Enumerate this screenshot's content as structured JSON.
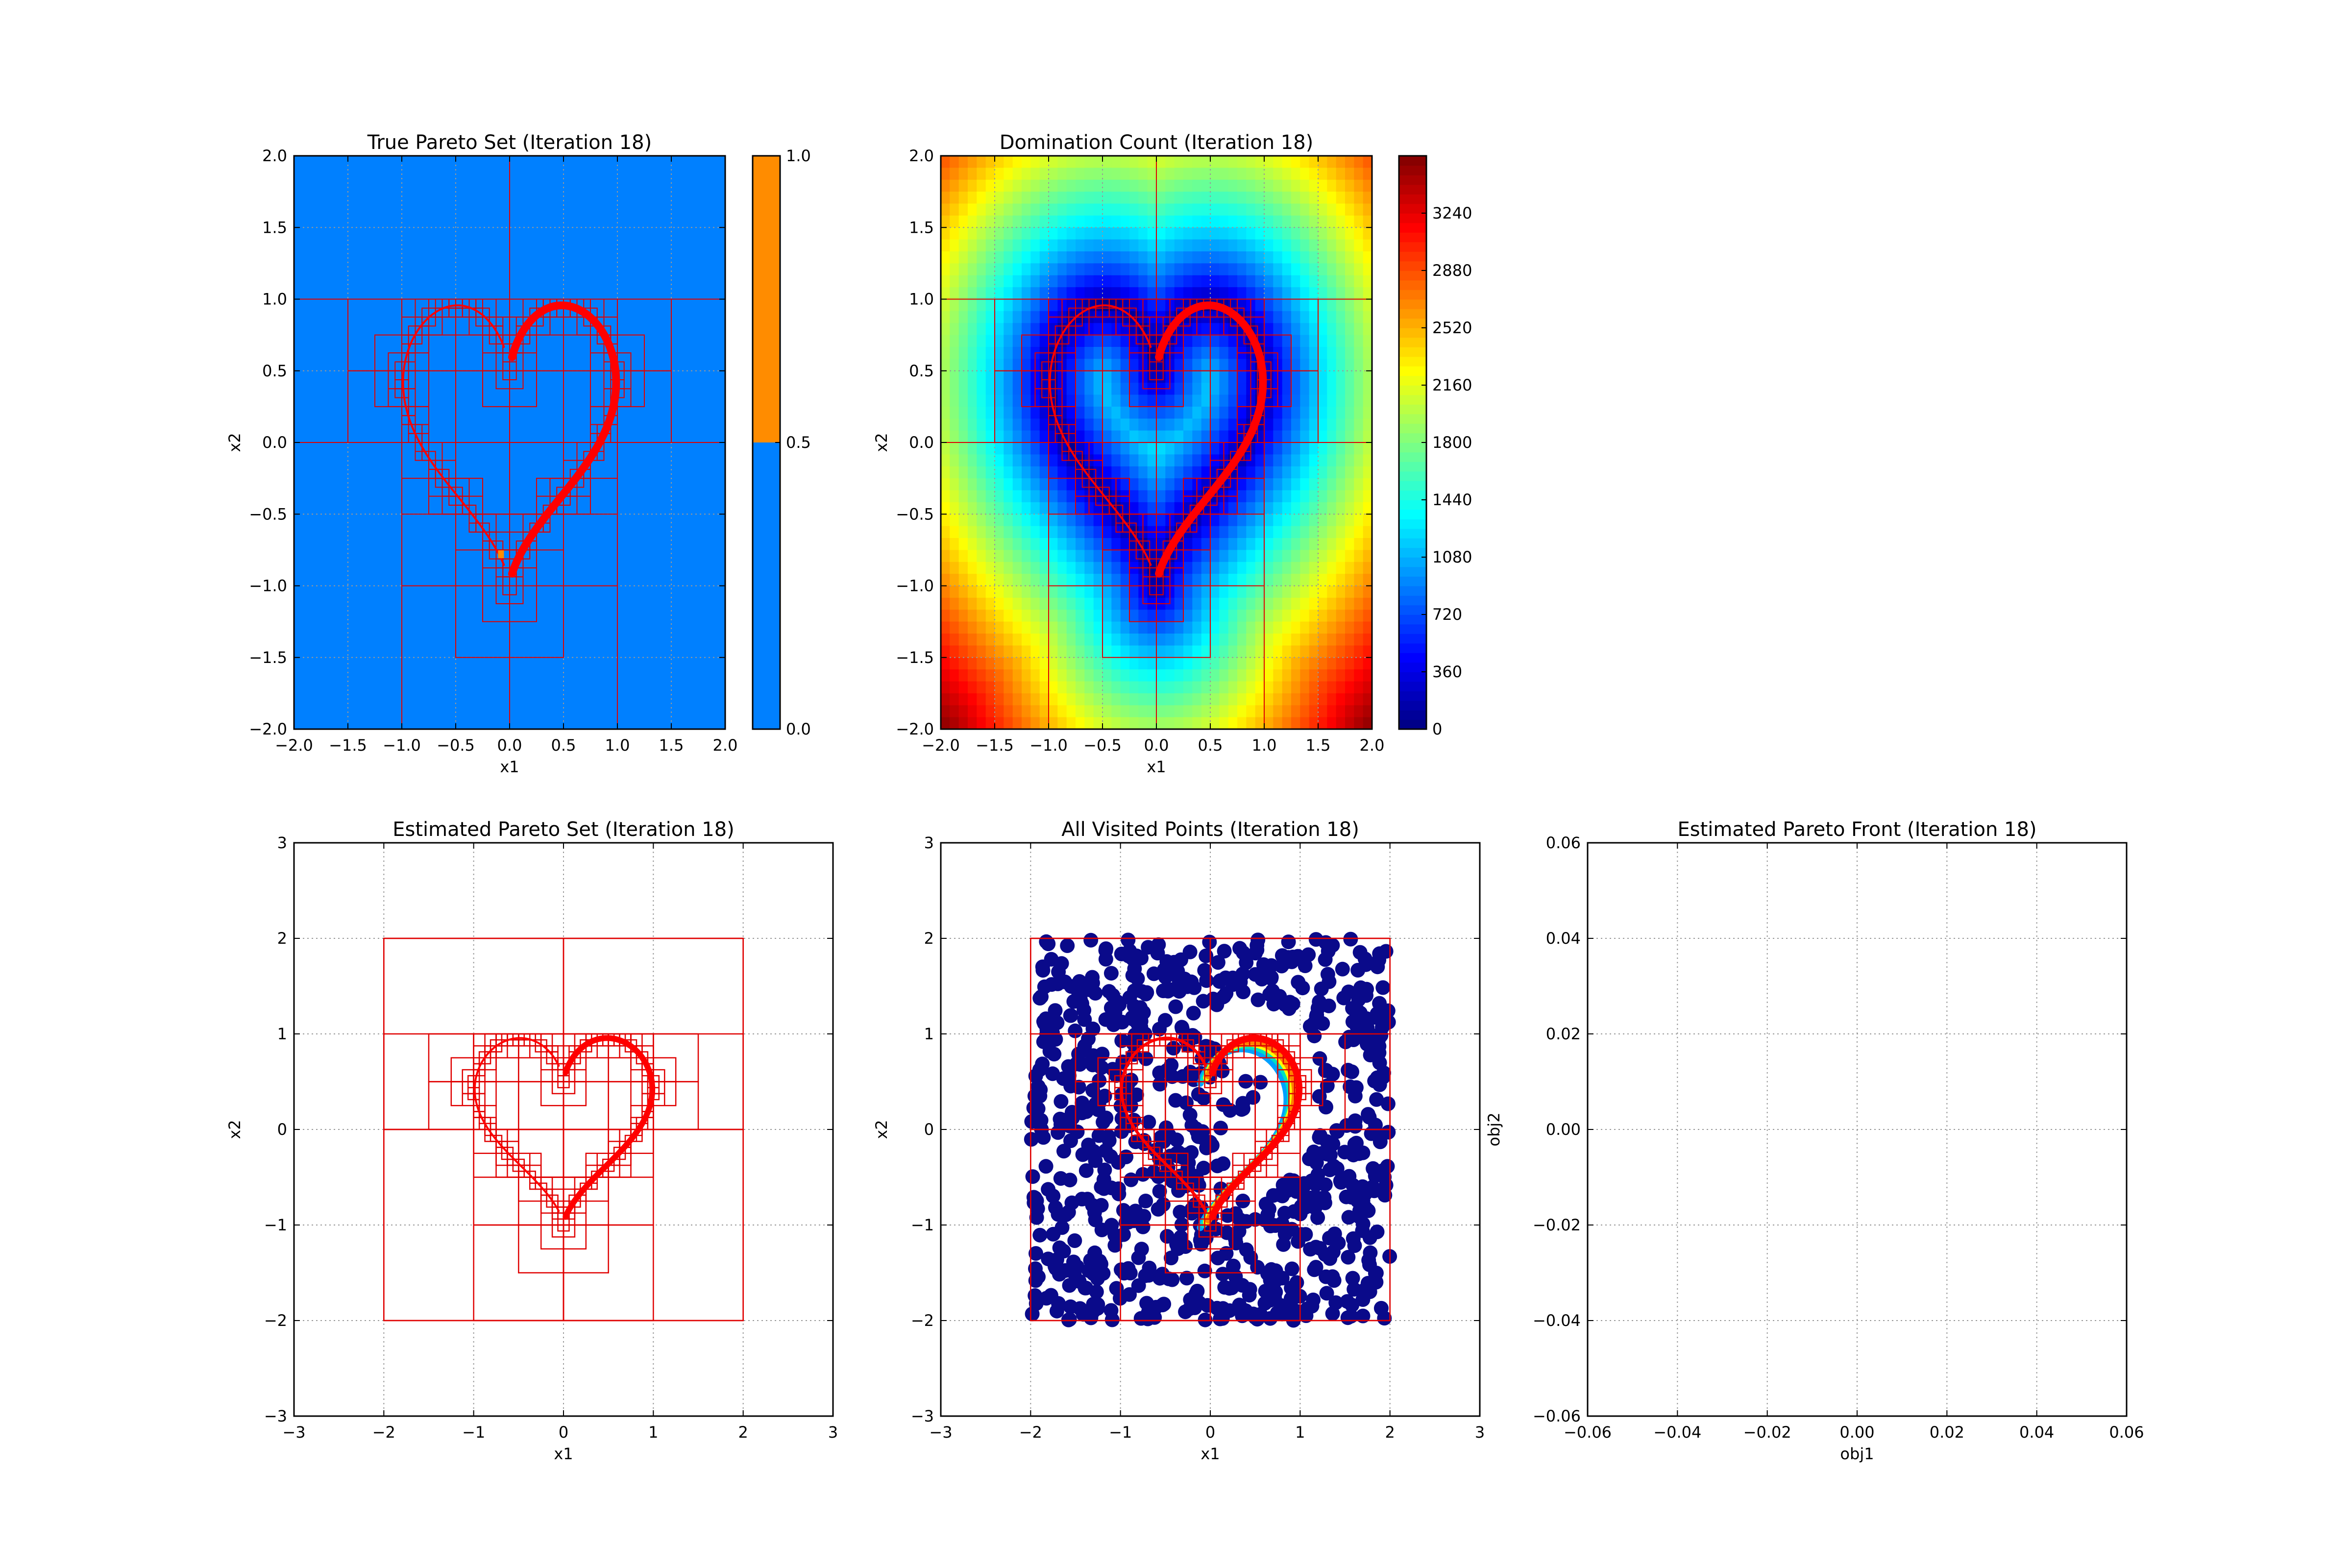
{
  "chart_data": [
    {
      "id": "p1",
      "type": "heatmap",
      "title": "True Pareto Set (Iteration 18)",
      "xlabel": "x1",
      "ylabel": "x2",
      "xlim": [
        -2,
        2
      ],
      "ylim": [
        -2,
        2
      ],
      "xticks": [
        -2.0,
        -1.5,
        -1.0,
        -0.5,
        0.0,
        0.5,
        1.0,
        1.5,
        2.0
      ],
      "yticks": [
        -2.0,
        -1.5,
        -1.0,
        -0.5,
        0.0,
        0.5,
        1.0,
        1.5,
        2.0
      ],
      "xticklabels": [
        "−2.0",
        "−1.5",
        "−1.0",
        "−0.5",
        "0.0",
        "0.5",
        "1.0",
        "1.5",
        "2.0"
      ],
      "yticklabels": [
        "−2.0",
        "−1.5",
        "−1.0",
        "−0.5",
        "0.0",
        "0.5",
        "1.0",
        "1.5",
        "2.0"
      ],
      "grid": true,
      "background_color": "#0080ff",
      "highlight_color": "#ff8c00",
      "highlight_points": [
        [
          -0.08,
          -0.78
        ]
      ],
      "colorbar": {
        "ticks": [
          0.0,
          0.5,
          1.0
        ],
        "ticklabels": [
          "0.0",
          "0.5",
          "1.0"
        ],
        "segments": [
          {
            "from": 0.0,
            "to": 0.5,
            "color": "#0080ff"
          },
          {
            "from": 0.5,
            "to": 1.0,
            "color": "#ff8c00"
          }
        ]
      }
    },
    {
      "id": "p2",
      "type": "heatmap",
      "title": "Domination Count (Iteration 18)",
      "xlabel": "x1",
      "ylabel": "x2",
      "xlim": [
        -2,
        2
      ],
      "ylim": [
        -2,
        2
      ],
      "xticks": [
        -2.0,
        -1.5,
        -1.0,
        -0.5,
        0.0,
        0.5,
        1.0,
        1.5,
        2.0
      ],
      "yticks": [
        -2.0,
        -1.5,
        -1.0,
        -0.5,
        0.0,
        0.5,
        1.0,
        1.5,
        2.0
      ],
      "xticklabels": [
        "−2.0",
        "−1.5",
        "−1.0",
        "−0.5",
        "0.0",
        "0.5",
        "1.0",
        "1.5",
        "2.0"
      ],
      "yticklabels": [
        "−2.0",
        "−1.5",
        "−1.0",
        "−0.5",
        "0.0",
        "0.5",
        "1.0",
        "1.5",
        "2.0"
      ],
      "grid": true,
      "colormap": "jet",
      "colorbar": {
        "range": [
          0,
          3600
        ],
        "ticks": [
          0,
          360,
          720,
          1080,
          1440,
          1800,
          2160,
          2520,
          2880,
          3240
        ],
        "ticklabels": [
          "0",
          "360",
          "720",
          "1080",
          "1440",
          "1800",
          "2160",
          "2520",
          "2880",
          "3240"
        ]
      }
    },
    {
      "id": "p3",
      "type": "line",
      "title": "Estimated Pareto Set (Iteration 18)",
      "xlabel": "x1",
      "ylabel": "x2",
      "xlim": [
        -3,
        3
      ],
      "ylim": [
        -3,
        3
      ],
      "xticks": [
        -3,
        -2,
        -1,
        0,
        1,
        2,
        3
      ],
      "yticks": [
        -3,
        -2,
        -1,
        0,
        1,
        2,
        3
      ],
      "xticklabels": [
        "−3",
        "−2",
        "−1",
        "0",
        "1",
        "2",
        "3"
      ],
      "yticklabels": [
        "−3",
        "−2",
        "−1",
        "0",
        "1",
        "2",
        "3"
      ],
      "grid": true
    },
    {
      "id": "p4",
      "type": "scatter",
      "title": "All Visited Points (Iteration 18)",
      "xlabel": "x1",
      "ylabel": "x2",
      "xlim": [
        -3,
        3
      ],
      "ylim": [
        -3,
        3
      ],
      "xticks": [
        -3,
        -2,
        -1,
        0,
        1,
        2,
        3
      ],
      "yticks": [
        -3,
        -2,
        -1,
        0,
        1,
        2,
        3
      ],
      "xticklabels": [
        "−3",
        "−2",
        "−1",
        "0",
        "1",
        "2",
        "3"
      ],
      "yticklabels": [
        "−3",
        "−2",
        "−1",
        "0",
        "1",
        "2",
        "3"
      ],
      "grid": true,
      "point_color": "#0a0a8a",
      "point_region": [
        [
          -2,
          2
        ],
        [
          -2,
          2
        ]
      ]
    },
    {
      "id": "p5",
      "type": "scatter",
      "title": "Estimated Pareto Front (Iteration 18)",
      "xlabel": "obj1",
      "ylabel": "obj2",
      "xlim": [
        -0.06,
        0.06
      ],
      "ylim": [
        -0.06,
        0.06
      ],
      "xticks": [
        -0.06,
        -0.04,
        -0.02,
        0.0,
        0.02,
        0.04,
        0.06
      ],
      "yticks": [
        -0.06,
        -0.04,
        -0.02,
        0.0,
        0.02,
        0.04,
        0.06
      ],
      "xticklabels": [
        "−0.06",
        "−0.04",
        "−0.02",
        "0.00",
        "0.02",
        "0.04",
        "0.06"
      ],
      "yticklabels": [
        "−0.06",
        "−0.04",
        "−0.02",
        "0.00",
        "0.02",
        "0.04",
        "0.06"
      ],
      "grid": true,
      "points": []
    }
  ],
  "colors": {
    "box_edge": "#e00000",
    "pareto_curve": "#ff0000",
    "grid": "#999999"
  }
}
